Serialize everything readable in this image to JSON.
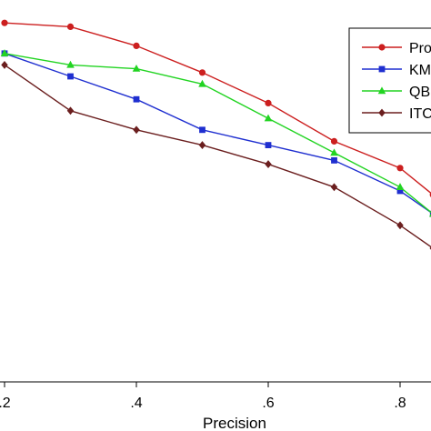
{
  "chart_data": {
    "type": "line",
    "xlabel": "Precision",
    "ylabel": "",
    "xlim": [
      0.2,
      0.85
    ],
    "ylim": [
      0,
      1
    ],
    "x_ticks": [
      ".2",
      ".4",
      ".6",
      ".8"
    ],
    "x_tick_values": [
      0.2,
      0.4,
      0.6,
      0.8
    ],
    "grid": false,
    "legend_position": "top-right",
    "series": [
      {
        "name": "Pro",
        "color": "#cc1f1f",
        "marker": "circle",
        "x": [
          0.2,
          0.3,
          0.4,
          0.5,
          0.6,
          0.7,
          0.8,
          0.85
        ],
        "y": [
          0.94,
          0.93,
          0.88,
          0.81,
          0.73,
          0.63,
          0.56,
          0.49
        ]
      },
      {
        "name": "KM",
        "color": "#1f2fd0",
        "marker": "square",
        "x": [
          0.2,
          0.3,
          0.4,
          0.5,
          0.6,
          0.7,
          0.8,
          0.85
        ],
        "y": [
          0.86,
          0.8,
          0.74,
          0.66,
          0.62,
          0.58,
          0.5,
          0.44
        ]
      },
      {
        "name": "QB",
        "color": "#22d422",
        "marker": "triangle",
        "x": [
          0.2,
          0.3,
          0.4,
          0.5,
          0.6,
          0.7,
          0.8,
          0.85
        ],
        "y": [
          0.86,
          0.83,
          0.82,
          0.78,
          0.69,
          0.6,
          0.51,
          0.44
        ]
      },
      {
        "name": "ITC",
        "color": "#6b1f1f",
        "marker": "diamond",
        "x": [
          0.2,
          0.3,
          0.4,
          0.5,
          0.6,
          0.7,
          0.8,
          0.85
        ],
        "y": [
          0.83,
          0.71,
          0.66,
          0.62,
          0.57,
          0.51,
          0.41,
          0.35
        ]
      }
    ]
  }
}
